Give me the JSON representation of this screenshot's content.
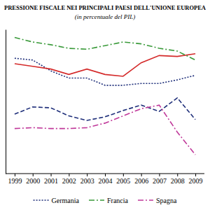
{
  "chart_data": {
    "type": "line",
    "title": "PRESSIONE FISCALE NEI PRINCIPALI PAESI DELL'UNIONE EUROPEA",
    "subtitle": "(in percentuale del PIL)",
    "categories": [
      "1999",
      "2000",
      "2001",
      "2002",
      "2003",
      "2004",
      "2005",
      "2006",
      "2007",
      "2008",
      "2009"
    ],
    "series": [
      {
        "name": "Germania",
        "color": "#1f2f7a",
        "line_style": "dotted",
        "values": [
          42.8,
          42.6,
          41.4,
          40.6,
          40.6,
          39.8,
          39.8,
          40.0,
          40.0,
          40.4,
          40.9
        ]
      },
      {
        "name": null,
        "color": "#d42a2a",
        "line_style": "solid",
        "values": [
          42.2,
          41.9,
          41.6,
          41.0,
          41.6,
          41.0,
          40.8,
          42.3,
          43.1,
          43.0,
          43.3
        ]
      },
      {
        "name": "Francia",
        "color": "#3a9a3a",
        "line_style": "dashdot",
        "values": [
          45.1,
          44.6,
          44.3,
          43.9,
          43.8,
          44.2,
          44.6,
          44.4,
          43.9,
          43.6,
          42.6
        ]
      },
      {
        "name": null,
        "color": "#1f2f7a",
        "line_style": "dashed",
        "values": [
          36.6,
          37.4,
          37.3,
          36.4,
          35.9,
          36.3,
          37.0,
          37.6,
          36.9,
          38.4,
          36.0
        ]
      },
      {
        "name": "Spagna",
        "color": "#c0399a",
        "line_style": "dashdot",
        "values": [
          35.0,
          35.1,
          35.0,
          35.0,
          35.1,
          35.6,
          36.4,
          37.2,
          37.6,
          34.6,
          32.1
        ]
      }
    ],
    "ylim": [
      30,
      46
    ],
    "tick_labels": "x",
    "grid": false,
    "legend": "bottom"
  }
}
